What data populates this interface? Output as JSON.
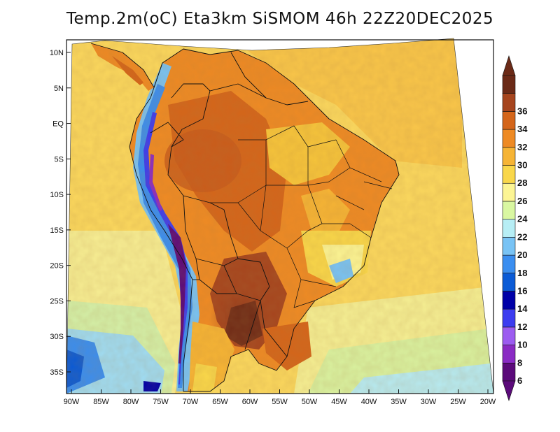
{
  "title": "Temp.2m(oC) Eta3km SiSMOM 46h 22Z20DEC2025",
  "chart_data": {
    "type": "heatmap",
    "variable": "Temp.2m",
    "units": "oC",
    "model": "Eta3km SiSMOM",
    "forecast_hour": "46h",
    "valid_time": "22Z20DEC2025",
    "lat_ticks": [
      "10N",
      "5N",
      "EQ",
      "5S",
      "10S",
      "15S",
      "20S",
      "25S",
      "30S",
      "35S"
    ],
    "lat_values": [
      10,
      5,
      0,
      -5,
      -10,
      -15,
      -20,
      -25,
      -30,
      -35
    ],
    "lon_ticks": [
      "90W",
      "85W",
      "80W",
      "75W",
      "70W",
      "65W",
      "60W",
      "55W",
      "50W",
      "45W",
      "40W",
      "35W",
      "30W",
      "25W",
      "20W"
    ],
    "lon_values": [
      -90,
      -85,
      -80,
      -75,
      -70,
      -65,
      -60,
      -55,
      -50,
      -45,
      -40,
      -35,
      -30,
      -25,
      -20
    ],
    "colorbar": {
      "labels": [
        "6",
        "8",
        "10",
        "12",
        "14",
        "16",
        "18",
        "20",
        "22",
        "24",
        "26",
        "28",
        "30",
        "32",
        "34",
        "36"
      ],
      "values": [
        6,
        8,
        10,
        12,
        14,
        16,
        18,
        20,
        22,
        24,
        26,
        28,
        30,
        32,
        34,
        36
      ],
      "colors": [
        "#5b0a7a",
        "#8a2bc4",
        "#9c5cf0",
        "#3c3cf0",
        "#0000a8",
        "#0b5bd6",
        "#3a8ef0",
        "#78c3f5",
        "#b7eef5",
        "#d9f7a1",
        "#fcf594",
        "#f9d74a",
        "#f6b435",
        "#ee8a24",
        "#d4651a",
        "#a6451e",
        "#6b2a17"
      ],
      "low_color": "#5b0a7a",
      "high_color": "#6b2a17"
    }
  }
}
